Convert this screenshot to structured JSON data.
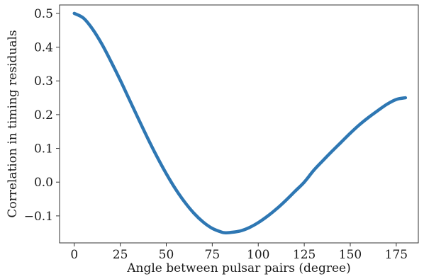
{
  "chart_data": {
    "type": "line",
    "title": "",
    "xlabel": "Angle between pulsar pairs (degree)",
    "ylabel": "Correlation in timing residuals",
    "xlim": [
      -8,
      187
    ],
    "ylim": [
      -0.18,
      0.525
    ],
    "xticks": [
      0,
      25,
      50,
      75,
      100,
      125,
      150,
      175
    ],
    "xtick_labels": [
      "0",
      "25",
      "50",
      "75",
      "100",
      "125",
      "150",
      "175"
    ],
    "yticks": [
      -0.1,
      0.0,
      0.1,
      0.2,
      0.3,
      0.4,
      0.5
    ],
    "ytick_labels": [
      "−0.1",
      "0.0",
      "0.1",
      "0.2",
      "0.3",
      "0.4",
      "0.5"
    ],
    "grid": false,
    "series": [
      {
        "color": "#2e77b3",
        "x": [
          0,
          5,
          10,
          15,
          20,
          25,
          30,
          35,
          40,
          45,
          50,
          55,
          60,
          65,
          70,
          75,
          80,
          82,
          85,
          90,
          95,
          100,
          105,
          110,
          115,
          120,
          125,
          130,
          135,
          140,
          145,
          150,
          155,
          160,
          165,
          170,
          175,
          180
        ],
        "values": [
          0.5,
          0.486,
          0.453,
          0.409,
          0.357,
          0.302,
          0.244,
          0.186,
          0.129,
          0.075,
          0.025,
          -0.02,
          -0.059,
          -0.092,
          -0.118,
          -0.137,
          -0.148,
          -0.15,
          -0.149,
          -0.145,
          -0.135,
          -0.12,
          -0.101,
          -0.079,
          -0.054,
          -0.027,
          0.0,
          0.034,
          0.063,
          0.091,
          0.118,
          0.145,
          0.17,
          0.192,
          0.212,
          0.231,
          0.245,
          0.25
        ]
      }
    ]
  }
}
